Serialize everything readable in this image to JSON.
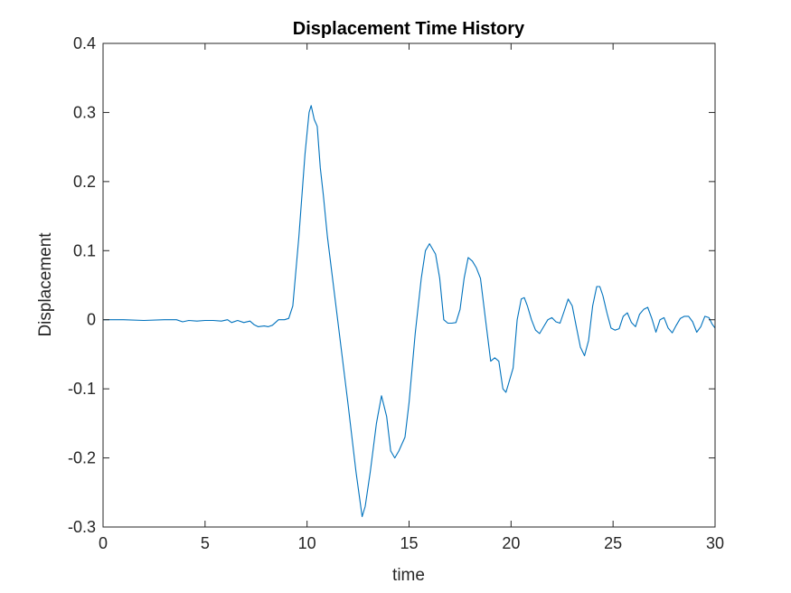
{
  "chart_data": {
    "type": "line",
    "title": "Displacement Time History",
    "xlabel": "time",
    "ylabel": "Displacement",
    "xlim": [
      0,
      30
    ],
    "ylim": [
      -0.3,
      0.4
    ],
    "xticks": [
      "0",
      "5",
      "10",
      "15",
      "20",
      "25",
      "30"
    ],
    "yticks": [
      "-0.3",
      "-0.2",
      "-0.1",
      "0",
      "0.1",
      "0.2",
      "0.3",
      "0.4"
    ],
    "grid": false,
    "legend": "none",
    "series": [
      {
        "color": "#0072bd",
        "x": [
          0,
          1,
          2,
          3,
          3.6,
          3.9,
          4.2,
          4.6,
          5.0,
          5.4,
          5.8,
          6.1,
          6.3,
          6.6,
          6.9,
          7.2,
          7.4,
          7.6,
          7.9,
          8.1,
          8.3,
          8.6,
          8.9,
          9.1,
          9.3,
          9.6,
          9.9,
          10.1,
          10.2,
          10.35,
          10.5,
          10.65,
          10.8,
          11.0,
          11.5,
          12.0,
          12.4,
          12.7,
          12.85,
          13.1,
          13.4,
          13.65,
          13.9,
          14.1,
          14.3,
          14.5,
          14.8,
          15.0,
          15.3,
          15.6,
          15.8,
          16.0,
          16.3,
          16.5,
          16.7,
          16.9,
          17.1,
          17.3,
          17.5,
          17.7,
          17.9,
          18.1,
          18.3,
          18.5,
          18.75,
          19.0,
          19.2,
          19.4,
          19.6,
          19.75,
          19.9,
          20.1,
          20.3,
          20.5,
          20.65,
          20.8,
          21.0,
          21.2,
          21.4,
          21.6,
          21.8,
          22.0,
          22.2,
          22.4,
          22.6,
          22.8,
          23.0,
          23.2,
          23.4,
          23.6,
          23.8,
          24.0,
          24.2,
          24.35,
          24.5,
          24.7,
          24.9,
          25.1,
          25.3,
          25.5,
          25.7,
          25.9,
          26.1,
          26.3,
          26.5,
          26.7,
          26.9,
          27.1,
          27.3,
          27.5,
          27.7,
          27.9,
          28.1,
          28.3,
          28.5,
          28.7,
          28.9,
          29.1,
          29.3,
          29.5,
          29.7,
          29.85,
          30.0
        ],
        "y": [
          0.0,
          0.0,
          -0.001,
          0.0,
          0.0,
          -0.003,
          -0.001,
          -0.002,
          -0.001,
          -0.001,
          -0.002,
          0.0,
          -0.004,
          -0.001,
          -0.004,
          -0.002,
          -0.007,
          -0.01,
          -0.009,
          -0.01,
          -0.008,
          0.0,
          0.0,
          0.002,
          0.02,
          0.12,
          0.24,
          0.3,
          0.31,
          0.29,
          0.28,
          0.22,
          0.18,
          0.12,
          0.0,
          -0.12,
          -0.22,
          -0.285,
          -0.27,
          -0.22,
          -0.15,
          -0.11,
          -0.14,
          -0.19,
          -0.2,
          -0.19,
          -0.17,
          -0.12,
          -0.02,
          0.06,
          0.1,
          0.11,
          0.095,
          0.06,
          0.0,
          -0.005,
          -0.005,
          -0.004,
          0.015,
          0.06,
          0.09,
          0.085,
          0.075,
          0.06,
          0.0,
          -0.06,
          -0.055,
          -0.06,
          -0.1,
          -0.105,
          -0.09,
          -0.07,
          0.0,
          0.03,
          0.032,
          0.02,
          0.0,
          -0.015,
          -0.02,
          -0.01,
          0.0,
          0.003,
          -0.003,
          -0.005,
          0.012,
          0.03,
          0.02,
          -0.01,
          -0.04,
          -0.052,
          -0.03,
          0.02,
          0.048,
          0.048,
          0.035,
          0.01,
          -0.012,
          -0.015,
          -0.013,
          0.005,
          0.01,
          -0.004,
          -0.01,
          0.008,
          0.015,
          0.018,
          0.002,
          -0.018,
          0.0,
          0.003,
          -0.012,
          -0.019,
          -0.008,
          0.002,
          0.005,
          0.005,
          -0.003,
          -0.018,
          -0.01,
          0.005,
          0.003,
          -0.006,
          -0.012
        ]
      }
    ]
  }
}
